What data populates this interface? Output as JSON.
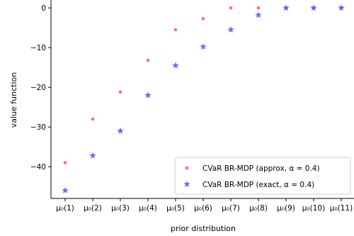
{
  "chart_data": {
    "type": "scatter",
    "xlabel": "prior distribution",
    "ylabel": "value function",
    "categories": [
      "μ₀(1)",
      "μ₀(2)",
      "μ₀(3)",
      "μ₀(4)",
      "μ₀(5)",
      "μ₀(6)",
      "μ₀(7)",
      "μ₀(8)",
      "μ₀(9)",
      "μ₀(10)",
      "μ₀(11)"
    ],
    "ylim": [
      -48,
      2
    ],
    "yticks": [
      0,
      -10,
      -20,
      -30,
      -40
    ],
    "ytick_labels": [
      "0",
      "−10",
      "−20",
      "−30",
      "−40"
    ],
    "grid": false,
    "legend_position": "lower-right",
    "series": [
      {
        "name": "CVaR BR-MDP (approx, α = 0.4)",
        "marker": "dot",
        "color": "#ff5555",
        "values": [
          -39.0,
          -28.0,
          -21.2,
          -13.2,
          -5.5,
          -2.7,
          0,
          0,
          0,
          0,
          0
        ]
      },
      {
        "name": "CVaR BR-MDP (exact, α = 0.4)",
        "marker": "star",
        "color": "#5555ff",
        "values": [
          -46.0,
          -37.2,
          -31.0,
          -22.0,
          -14.5,
          -9.8,
          -5.5,
          -1.8,
          0,
          0,
          0
        ]
      }
    ]
  }
}
